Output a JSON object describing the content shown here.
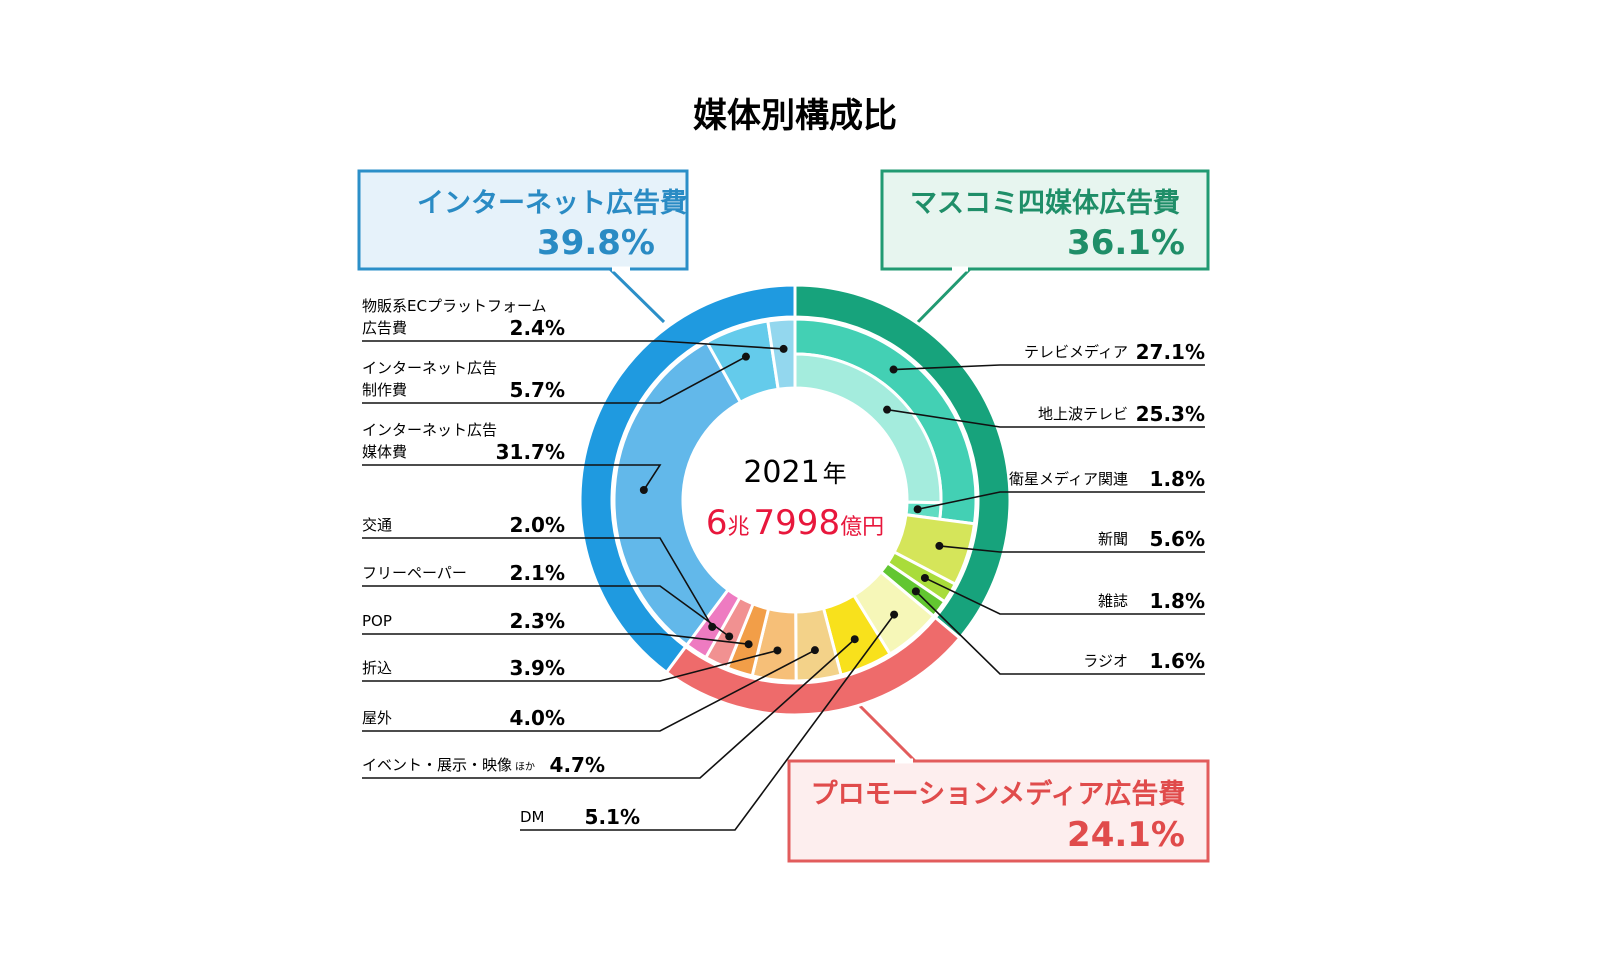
{
  "chart_data": {
    "type": "pie",
    "subtype": "nested-donut",
    "title": "媒体別構成比",
    "center": {
      "year": "2021",
      "year_unit": "年",
      "total_parts": [
        "6",
        "兆",
        "7998",
        "億円"
      ]
    },
    "categories": [
      {
        "name": "マスコミ四媒体広告費",
        "value": 36.1,
        "value_label": "36.1%",
        "color": "#17a37c",
        "box_fill": "#e7f5ef",
        "box_stroke": "#219a72",
        "text_color": "#1f8e68",
        "items": [
          {
            "name": "テレビメディア",
            "value": 27.1,
            "value_label": "27.1%",
            "color": "#43d0b4",
            "children": [
              {
                "name": "地上波テレビ",
                "value": 25.3,
                "value_label": "25.3%",
                "color": "#a4ecdd"
              },
              {
                "name": "衛星メディア関連",
                "value": 1.8,
                "value_label": "1.8%",
                "color": "#5fdcc2"
              }
            ]
          },
          {
            "name": "新聞",
            "value": 5.6,
            "value_label": "5.6%",
            "color": "#d5e55a"
          },
          {
            "name": "雑誌",
            "value": 1.8,
            "value_label": "1.8%",
            "color": "#a9dc3a"
          },
          {
            "name": "ラジオ",
            "value": 1.6,
            "value_label": "1.6%",
            "color": "#62c631"
          }
        ]
      },
      {
        "name": "プロモーションメディア広告費",
        "value": 24.1,
        "value_label": "24.1%",
        "color": "#ee6b6b",
        "box_fill": "#fdeeee",
        "box_stroke": "#e25c5c",
        "text_color": "#e04b4b",
        "items": [
          {
            "name": "DM",
            "value": 5.1,
            "value_label": "5.1%",
            "color": "#f6f7b8"
          },
          {
            "name": "イベント・展示・映像",
            "name_suffix": "ほか",
            "value": 4.7,
            "value_label": "4.7%",
            "color": "#f8e11c"
          },
          {
            "name": "屋外",
            "value": 4.0,
            "value_label": "4.0%",
            "color": "#f3d289"
          },
          {
            "name": "折込",
            "value": 3.9,
            "value_label": "3.9%",
            "color": "#f6bf78"
          },
          {
            "name": "POP",
            "value": 2.3,
            "value_label": "2.3%",
            "color": "#f29e48"
          },
          {
            "name": "フリーペーパー",
            "value": 2.1,
            "value_label": "2.1%",
            "color": "#f19191"
          },
          {
            "name": "交通",
            "value": 2.0,
            "value_label": "2.0%",
            "color": "#ee7bc1"
          }
        ]
      },
      {
        "name": "インターネット広告費",
        "value": 39.8,
        "value_label": "39.8%",
        "color": "#1f9ae0",
        "box_fill": "#e6f2fa",
        "box_stroke": "#2b8fc8",
        "text_color": "#2a8bc4",
        "items": [
          {
            "name": "インターネット広告媒体費",
            "name_lines": [
              "インターネット広告",
              "媒体費"
            ],
            "value": 31.7,
            "value_label": "31.7%",
            "color": "#62b8ea"
          },
          {
            "name": "インターネット広告制作費",
            "name_lines": [
              "インターネット広告",
              "制作費"
            ],
            "value": 5.7,
            "value_label": "5.7%",
            "color": "#64cbeb"
          },
          {
            "name": "物販系ECプラットフォーム広告費",
            "name_lines": [
              "物販系ECプラットフォーム",
              "広告費"
            ],
            "value": 2.4,
            "value_label": "2.4%",
            "color": "#93d7ee"
          }
        ]
      }
    ]
  }
}
